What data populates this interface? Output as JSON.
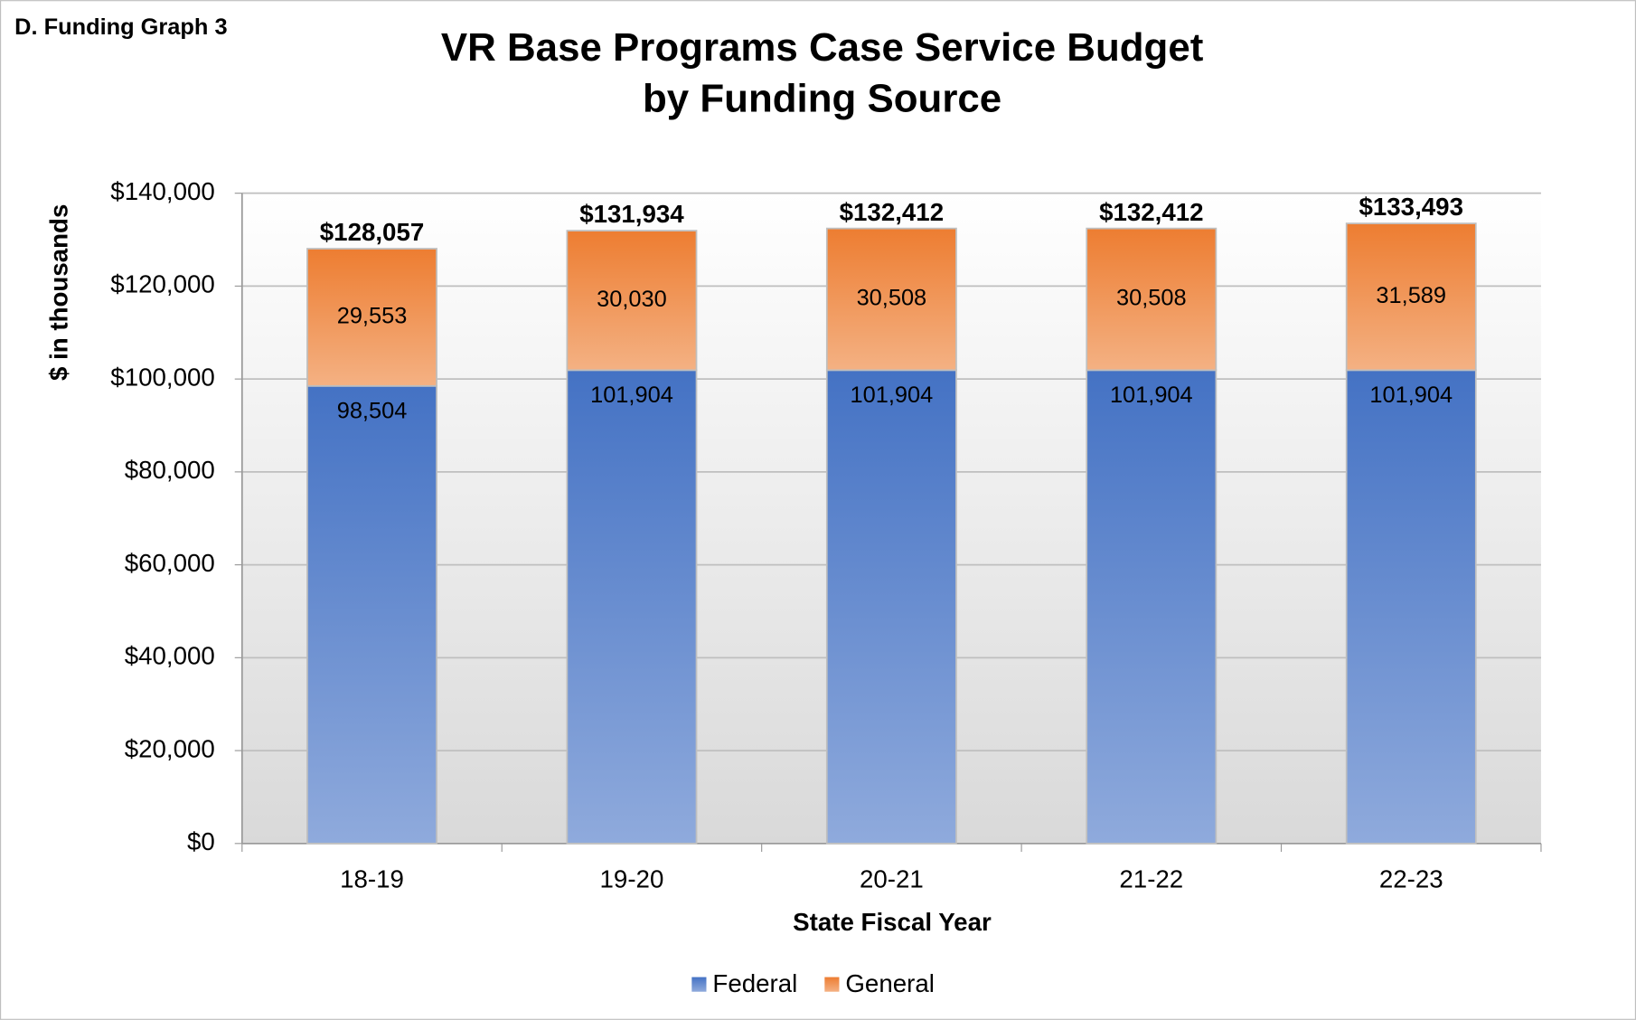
{
  "header": "D. Funding Graph 3",
  "chart_data": {
    "type": "stacked_bar",
    "title": [
      "VR Base Programs Case Service Budget",
      "by Funding Source"
    ],
    "x_label": "State Fiscal Year",
    "y_label": "$ in thousands",
    "categories": [
      "18-19",
      "19-20",
      "20-21",
      "21-22",
      "22-23"
    ],
    "series": [
      {
        "name": "Federal",
        "color": "#4472c4",
        "values": [
          98504,
          101904,
          101904,
          101904,
          101904
        ],
        "value_labels": [
          "98,504",
          "101,904",
          "101,904",
          "101,904",
          "101,904"
        ]
      },
      {
        "name": "General",
        "color": "#ed7d31",
        "values": [
          29553,
          30030,
          30508,
          30508,
          31589
        ],
        "value_labels": [
          "29,553",
          "30,030",
          "30,508",
          "30,508",
          "31,589"
        ]
      }
    ],
    "totals": [
      128057,
      131934,
      132412,
      132412,
      133493
    ],
    "total_labels": [
      "$128,057",
      "$131,934",
      "$132,412",
      "$132,412",
      "$133,493"
    ],
    "ylim": [
      0,
      140000
    ],
    "yticks": [
      {
        "value": 0,
        "label": "$0"
      },
      {
        "value": 20000,
        "label": "$20,000"
      },
      {
        "value": 40000,
        "label": "$40,000"
      },
      {
        "value": 60000,
        "label": "$60,000"
      },
      {
        "value": 80000,
        "label": "$80,000"
      },
      {
        "value": 100000,
        "label": "$100,000"
      },
      {
        "value": 120000,
        "label": "$120,000"
      },
      {
        "value": 140000,
        "label": "$140,000"
      }
    ],
    "grid": true,
    "legend": "bottom"
  }
}
